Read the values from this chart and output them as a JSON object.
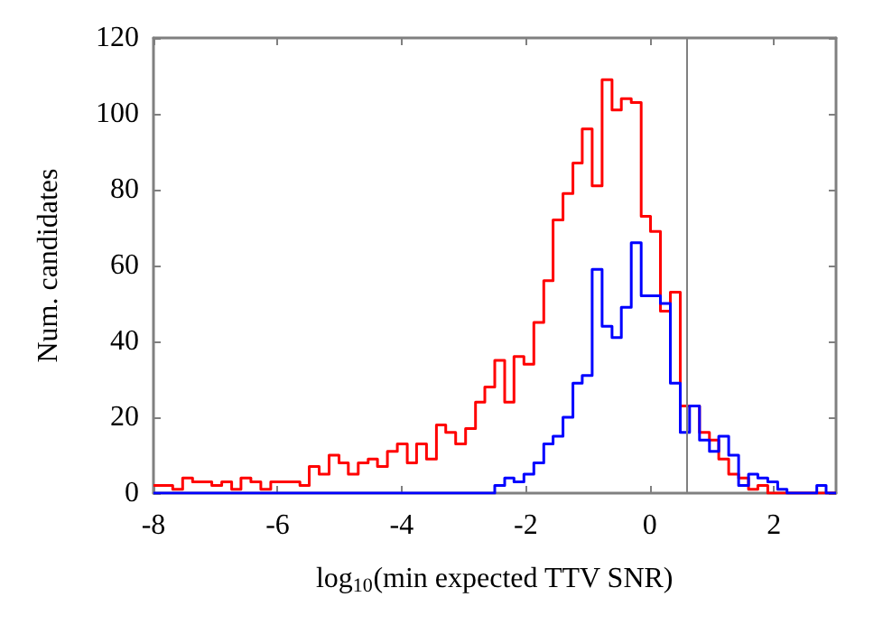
{
  "chart_data": {
    "type": "histogram",
    "xlabel": "log$_{10}$(min expected TTV SNR)",
    "ylabel": "Num. candidates",
    "bins": [
      -8,
      -7.84,
      -7.69,
      -7.53,
      -7.37,
      -7.21,
      -7.06,
      -6.9,
      -6.74,
      -6.59,
      -6.43,
      -6.27,
      -6.11,
      -5.96,
      -5.8,
      -5.64,
      -5.49,
      -5.33,
      -5.17,
      -5.01,
      -4.86,
      -4.7,
      -4.54,
      -4.39,
      -4.23,
      -4.07,
      -3.91,
      -3.76,
      -3.6,
      -3.44,
      -3.29,
      -3.13,
      -2.97,
      -2.81,
      -2.66,
      -2.5,
      -2.34,
      -2.19,
      -2.03,
      -1.87,
      -1.71,
      -1.56,
      -1.4,
      -1.24,
      -1.09,
      -0.93,
      -0.77,
      -0.61,
      -0.46,
      -0.3,
      -0.14,
      0.01,
      0.17,
      0.33,
      0.49,
      0.64,
      0.8,
      0.96,
      1.11,
      1.27,
      1.43,
      1.59,
      1.74,
      1.9,
      2.06,
      2.21,
      2.37,
      2.53,
      2.69,
      2.84,
      3
    ],
    "series": [
      {
        "color": "#ff0000",
        "values": [
          2,
          2,
          1,
          4,
          3,
          3,
          2,
          3,
          1,
          4,
          3,
          1,
          3,
          3,
          3,
          2,
          7,
          5,
          10,
          8,
          5,
          8,
          9,
          7,
          11,
          13,
          8,
          13,
          9,
          18,
          16,
          13,
          17,
          24,
          28,
          35,
          24,
          36,
          34,
          45,
          56,
          72,
          79,
          87,
          96,
          81,
          109,
          101,
          104,
          103,
          73,
          69,
          48,
          53,
          23,
          23,
          16,
          14,
          9,
          5,
          4,
          1,
          2,
          0,
          0,
          0,
          0,
          0,
          0,
          0
        ]
      },
      {
        "color": "#0000ff",
        "values": [
          0,
          0,
          0,
          0,
          0,
          0,
          0,
          0,
          0,
          0,
          0,
          0,
          0,
          0,
          0,
          0,
          0,
          0,
          0,
          0,
          0,
          0,
          0,
          0,
          0,
          0,
          0,
          0,
          0,
          0,
          0,
          0,
          0,
          0,
          0,
          2,
          4,
          3,
          5,
          8,
          13,
          15,
          20,
          29,
          31,
          59,
          44,
          41,
          49,
          66,
          52,
          52,
          50,
          29,
          16,
          23,
          14,
          11,
          15,
          10,
          2,
          5,
          4,
          3,
          1,
          0,
          0,
          0,
          2,
          0
        ]
      }
    ],
    "xlim": [
      -8,
      3
    ],
    "xticks": [
      -8,
      -6,
      -4,
      -2,
      0,
      2
    ],
    "ylim": [
      0,
      120
    ],
    "yticks": [
      0,
      20,
      40,
      60,
      80,
      100,
      120
    ],
    "ref_lines": [
      {
        "axis": "x",
        "value": 0.6,
        "color": "#808080"
      }
    ],
    "grid": false
  }
}
